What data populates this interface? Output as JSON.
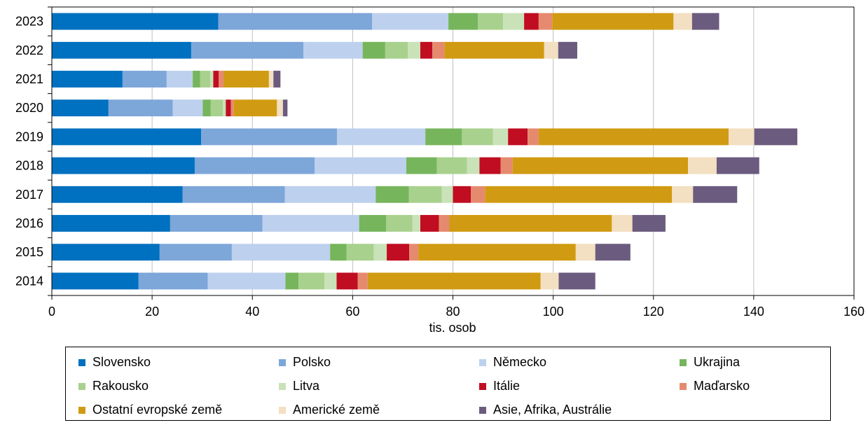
{
  "chart_data": {
    "type": "bar",
    "orientation": "horizontal",
    "stacked": true,
    "categories": [
      "2023",
      "2022",
      "2021",
      "2020",
      "2019",
      "2018",
      "2017",
      "2016",
      "2015",
      "2014"
    ],
    "xlabel": "tis. osob",
    "xlim": [
      0,
      160
    ],
    "xticks": [
      0,
      20,
      40,
      60,
      80,
      100,
      120,
      140,
      160
    ],
    "grid": "vertical",
    "legend_position": "bottom",
    "series": [
      {
        "name": "Slovensko",
        "color": "#0070C0",
        "values": [
          33.2,
          27.8,
          14.1,
          11.3,
          29.8,
          28.5,
          26.1,
          23.6,
          21.5,
          17.3
        ]
      },
      {
        "name": "Polsko",
        "color": "#7DA6D9",
        "values": [
          30.7,
          22.4,
          8.8,
          12.8,
          27.1,
          23.9,
          20.4,
          18.4,
          14.4,
          13.8
        ]
      },
      {
        "name": "Německo",
        "color": "#BDD0EE",
        "values": [
          15.2,
          11.8,
          5.2,
          6.0,
          17.6,
          18.3,
          18.1,
          19.3,
          19.6,
          15.5
        ]
      },
      {
        "name": "Ukrajina",
        "color": "#77B55C",
        "values": [
          5.9,
          4.5,
          1.5,
          1.6,
          7.3,
          6.1,
          6.6,
          5.4,
          3.3,
          2.6
        ]
      },
      {
        "name": "Rakousko",
        "color": "#A9D18E",
        "values": [
          5.0,
          4.5,
          2.0,
          2.4,
          6.2,
          6.0,
          6.6,
          5.2,
          5.4,
          5.2
        ]
      },
      {
        "name": "Litva",
        "color": "#C9E2B8",
        "values": [
          4.2,
          2.5,
          0.6,
          0.6,
          3.0,
          2.5,
          2.2,
          1.6,
          2.6,
          2.4
        ]
      },
      {
        "name": "Itálie",
        "color": "#C00D22",
        "values": [
          2.9,
          2.4,
          1.1,
          1.0,
          3.9,
          4.2,
          3.6,
          3.7,
          4.5,
          4.2
        ]
      },
      {
        "name": "Maďarsko",
        "color": "#E58A6F",
        "values": [
          2.7,
          2.4,
          1.0,
          0.6,
          2.2,
          2.4,
          2.8,
          2.1,
          1.8,
          2.0
        ]
      },
      {
        "name": "Ostatní evropské země",
        "color": "#D09B12",
        "values": [
          24.2,
          19.9,
          9.0,
          8.6,
          37.9,
          35.0,
          37.3,
          32.4,
          31.4,
          34.5
        ]
      },
      {
        "name": "Americké země",
        "color": "#F3DFC1",
        "values": [
          3.7,
          2.8,
          0.9,
          1.2,
          5.1,
          5.7,
          4.2,
          4.1,
          3.9,
          3.6
        ]
      },
      {
        "name": "Asie, Afrika, Austrálie",
        "color": "#6B5B7E",
        "values": [
          5.4,
          3.8,
          1.4,
          0.9,
          8.6,
          8.5,
          8.8,
          6.6,
          7.0,
          7.3
        ]
      }
    ]
  }
}
